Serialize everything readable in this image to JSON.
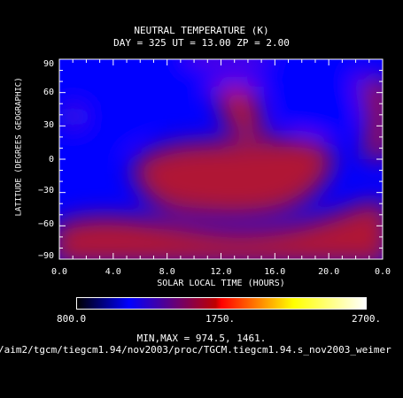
{
  "chart_data": {
    "type": "heatmap",
    "title": "NEUTRAL TEMPERATURE (K)",
    "subtitle": "DAY = 325  UT = 13.00  ZP =    2.00",
    "xlabel": "SOLAR LOCAL TIME (HOURS)",
    "ylabel": "LATITUDE (DEGREES GEOGRAPHIC)",
    "xlim": [
      0,
      24
    ],
    "ylim": [
      -90,
      90
    ],
    "x_ticks": [
      "0.0",
      "4.0",
      "8.0",
      "12.0",
      "16.0",
      "20.0",
      "0.0"
    ],
    "y_ticks": [
      "90",
      "60",
      "30",
      "0",
      "−30",
      "−60",
      "−90"
    ],
    "colorbar": {
      "min_label": "800.0",
      "mid_label": "1750.",
      "max_label": "2700.",
      "colors": [
        "#000000",
        "#0000ff",
        "#c00000",
        "#ff0000",
        "#ffff00",
        "#ffffff"
      ]
    },
    "min_max_text": "MIN,MAX =         974.5,      1461.",
    "field_colors": {
      "cold": "#0000ff",
      "mid": "#4a14c8",
      "warm": "#b01236"
    }
  },
  "footer": {
    "file_path": "/aim2/tgcm/tiegcm1.94/nov2003/proc/TGCM.tiegcm1.94.s_nov2003_weimer"
  }
}
